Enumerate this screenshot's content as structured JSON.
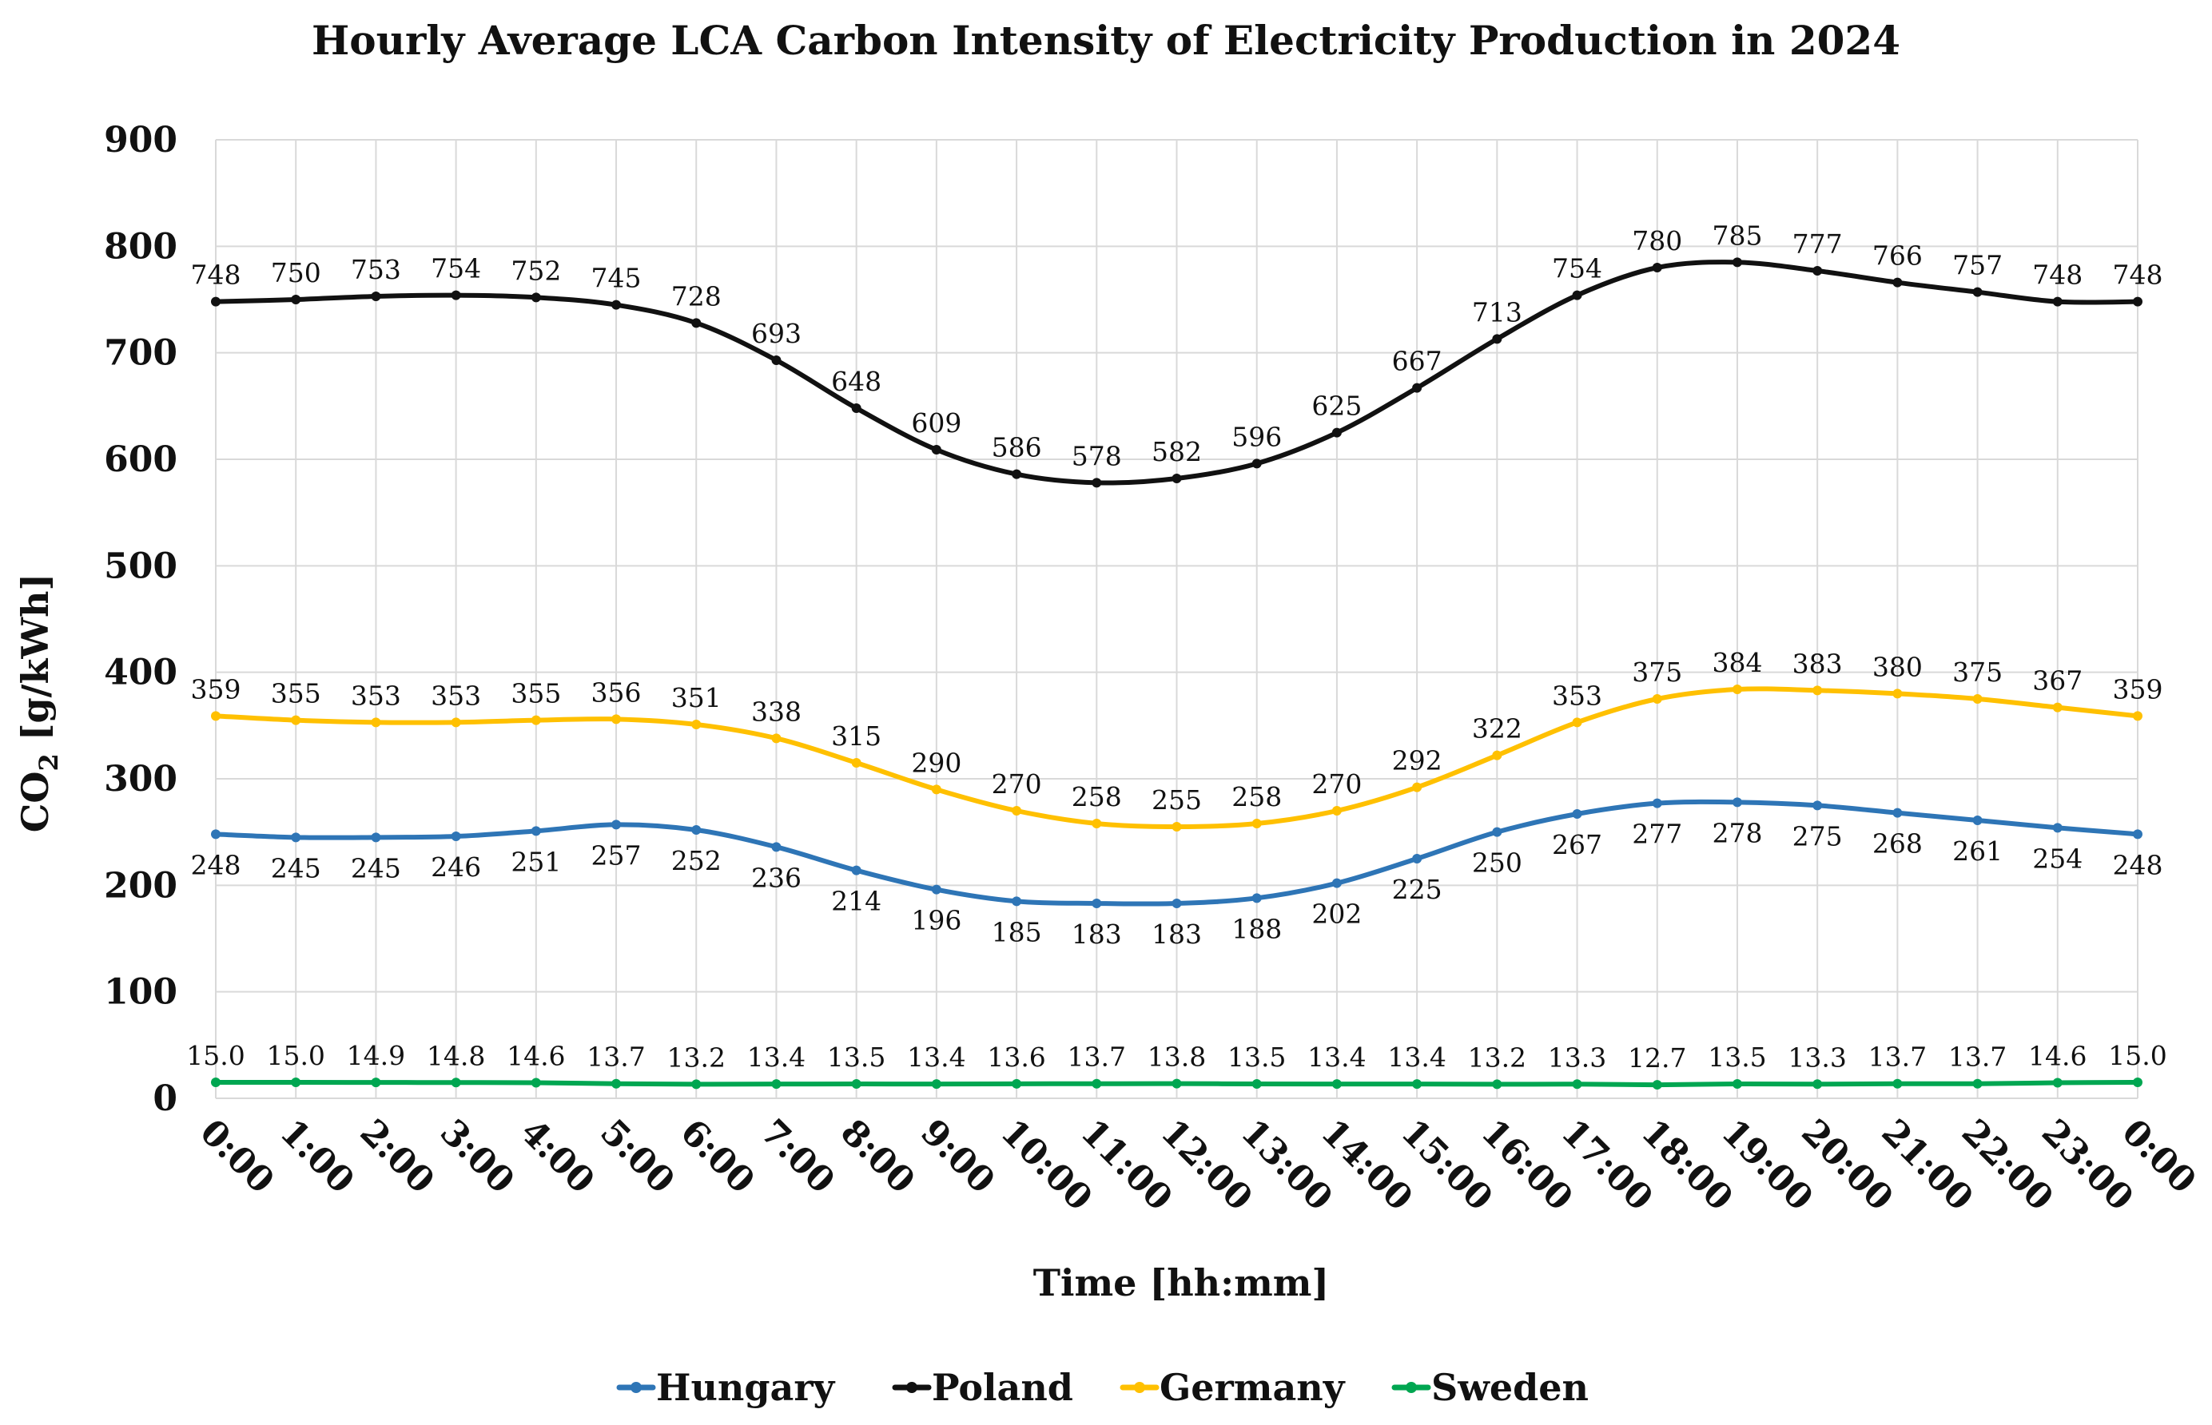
{
  "chart_data": {
    "type": "line",
    "title": "Hourly Average LCA Carbon Intensity of Electricity Production in 2024",
    "xlabel": "Time [hh:mm]",
    "ylabel_main": "CO",
    "ylabel_sub": "2",
    "ylabel_unit": " [g/kWh]",
    "ylim": [
      0,
      900
    ],
    "yticks": [
      "0",
      "100",
      "200",
      "300",
      "400",
      "500",
      "600",
      "700",
      "800",
      "900"
    ],
    "grid": true,
    "legend_position": "bottom",
    "categories": [
      "0:00",
      "1:00",
      "2:00",
      "3:00",
      "4:00",
      "5:00",
      "6:00",
      "7:00",
      "8:00",
      "9:00",
      "10:00",
      "11:00",
      "12:00",
      "13:00",
      "14:00",
      "15:00",
      "16:00",
      "17:00",
      "18:00",
      "19:00",
      "20:00",
      "21:00",
      "22:00",
      "23:00",
      "0:00"
    ],
    "series": [
      {
        "name": "Hungary",
        "color": "#2e75b6",
        "label_pos": "below",
        "values": [
          248,
          245,
          245,
          246,
          251,
          257,
          252,
          236,
          214,
          196,
          185,
          183,
          183,
          188,
          202,
          225,
          250,
          267,
          277,
          278,
          275,
          268,
          261,
          254,
          248
        ],
        "labels": [
          "248",
          "245",
          "245",
          "246",
          "251",
          "257",
          "252",
          "236",
          "214",
          "196",
          "185",
          "183",
          "183",
          "188",
          "202",
          "225",
          "250",
          "267",
          "277",
          "278",
          "275",
          "268",
          "261",
          "254",
          "248"
        ]
      },
      {
        "name": "Poland",
        "color": "#111111",
        "label_pos": "above",
        "values": [
          748,
          750,
          753,
          754,
          752,
          745,
          728,
          693,
          648,
          609,
          586,
          578,
          582,
          596,
          625,
          667,
          713,
          754,
          780,
          785,
          777,
          766,
          757,
          748,
          748
        ],
        "labels": [
          "748",
          "750",
          "753",
          "754",
          "752",
          "745",
          "728",
          "693",
          "648",
          "609",
          "586",
          "578",
          "582",
          "596",
          "625",
          "667",
          "713",
          "754",
          "780",
          "785",
          "777",
          "766",
          "757",
          "748",
          "748"
        ]
      },
      {
        "name": "Germany",
        "color": "#ffc000",
        "label_pos": "above",
        "values": [
          359,
          355,
          353,
          353,
          355,
          356,
          351,
          338,
          315,
          290,
          270,
          258,
          255,
          258,
          270,
          292,
          322,
          353,
          375,
          384,
          383,
          380,
          375,
          367,
          359
        ],
        "labels": [
          "359",
          "355",
          "353",
          "353",
          "355",
          "356",
          "351",
          "338",
          "315",
          "290",
          "270",
          "258",
          "255",
          "258",
          "270",
          "292",
          "322",
          "353",
          "375",
          "384",
          "383",
          "380",
          "375",
          "367",
          "359"
        ]
      },
      {
        "name": "Sweden",
        "color": "#00a651",
        "label_pos": "above",
        "values": [
          15.0,
          15.0,
          14.9,
          14.8,
          14.6,
          13.7,
          13.2,
          13.4,
          13.5,
          13.4,
          13.6,
          13.7,
          13.8,
          13.5,
          13.4,
          13.4,
          13.2,
          13.3,
          12.7,
          13.5,
          13.3,
          13.7,
          13.7,
          14.6,
          15.0
        ],
        "labels": [
          "15.0",
          "15.0",
          "14.9",
          "14.8",
          "14.6",
          "13.7",
          "13.2",
          "13.4",
          "13.5",
          "13.4",
          "13.6",
          "13.7",
          "13.8",
          "13.5",
          "13.4",
          "13.4",
          "13.2",
          "13.3",
          "12.7",
          "13.5",
          "13.3",
          "13.7",
          "13.7",
          "14.6",
          "15.0"
        ]
      }
    ]
  }
}
